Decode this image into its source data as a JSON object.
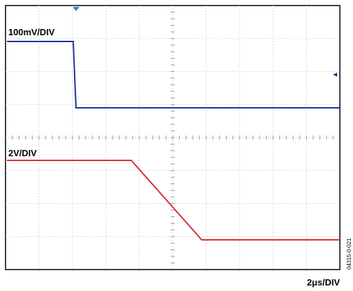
{
  "ch1_scale": "100mV/DIV",
  "ch2_scale": "2V/DIV",
  "time_scale": "2μs/DIV",
  "figure_id": "04315-0-021"
}
